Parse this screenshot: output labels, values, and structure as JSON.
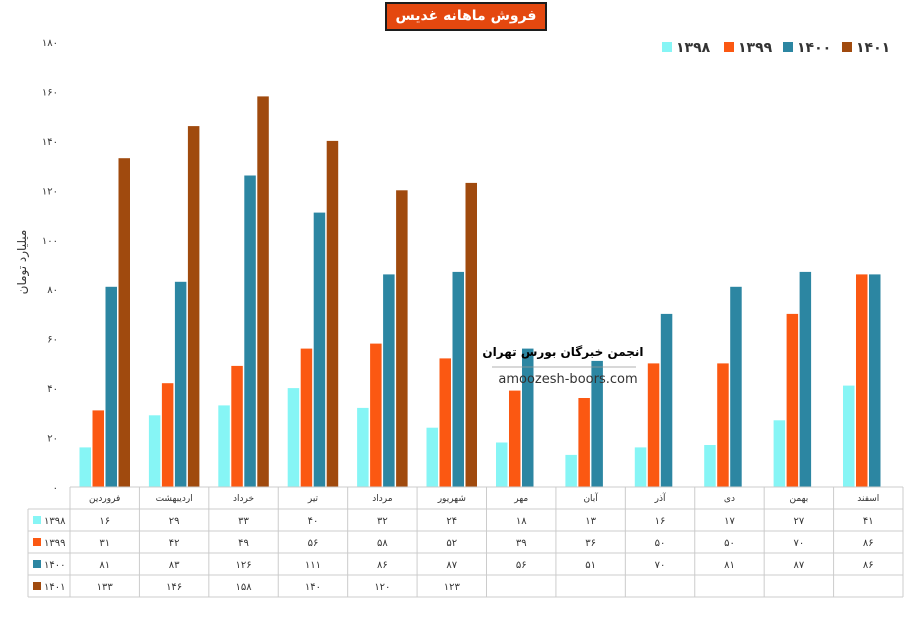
{
  "title": "فروش ماهانه غدیس",
  "watermark": {
    "line1": "انجمن خبرگان بورس تهران",
    "line2": "amoozesh-boors.com"
  },
  "chart_data": {
    "type": "bar",
    "title": "فروش ماهانه غدیس",
    "xlabel": "",
    "ylabel": "میلیارد تومان",
    "ylim": [
      0,
      180
    ],
    "yticks": [
      "۰",
      "۲۰",
      "۴۰",
      "۶۰",
      "۸۰",
      "۱۰۰",
      "۱۲۰",
      "۱۴۰",
      "۱۶۰",
      "۱۸۰"
    ],
    "grid": false,
    "legend_position": "top-right",
    "categories": [
      "فروردین",
      "اردیبهشت",
      "خرداد",
      "تیر",
      "مرداد",
      "شهریور",
      "مهر",
      "آبان",
      "آذر",
      "دی",
      "بهمن",
      "اسفند"
    ],
    "series": [
      {
        "name": "۱۳۹۸",
        "color": "#86f5f5",
        "values": [
          16,
          29,
          33,
          40,
          32,
          24,
          18,
          13,
          16,
          17,
          27,
          41
        ],
        "labels": [
          "۱۶",
          "۲۹",
          "۳۳",
          "۴۰",
          "۳۲",
          "۲۴",
          "۱۸",
          "۱۳",
          "۱۶",
          "۱۷",
          "۲۷",
          "۴۱"
        ]
      },
      {
        "name": "۱۳۹۹",
        "color": "#fb5812",
        "values": [
          31,
          42,
          49,
          56,
          58,
          52,
          39,
          36,
          50,
          50,
          70,
          86
        ],
        "labels": [
          "۳۱",
          "۴۲",
          "۴۹",
          "۵۶",
          "۵۸",
          "۵۲",
          "۳۹",
          "۳۶",
          "۵۰",
          "۵۰",
          "۷۰",
          "۸۶"
        ]
      },
      {
        "name": "۱۴۰۰",
        "color": "#2c86a2",
        "values": [
          81,
          83,
          126,
          111,
          86,
          87,
          56,
          51,
          70,
          81,
          87,
          86
        ],
        "labels": [
          "۸۱",
          "۸۳",
          "۱۲۶",
          "۱۱۱",
          "۸۶",
          "۸۷",
          "۵۶",
          "۵۱",
          "۷۰",
          "۸۱",
          "۸۷",
          "۸۶"
        ]
      },
      {
        "name": "۱۴۰۱",
        "color": "#a04a0e",
        "values": [
          133,
          146,
          158,
          140,
          120,
          123,
          null,
          null,
          null,
          null,
          null,
          null
        ],
        "labels": [
          "۱۳۳",
          "۱۴۶",
          "۱۵۸",
          "۱۴۰",
          "۱۲۰",
          "۱۲۳",
          "",
          "",
          "",
          "",
          "",
          ""
        ]
      }
    ]
  }
}
